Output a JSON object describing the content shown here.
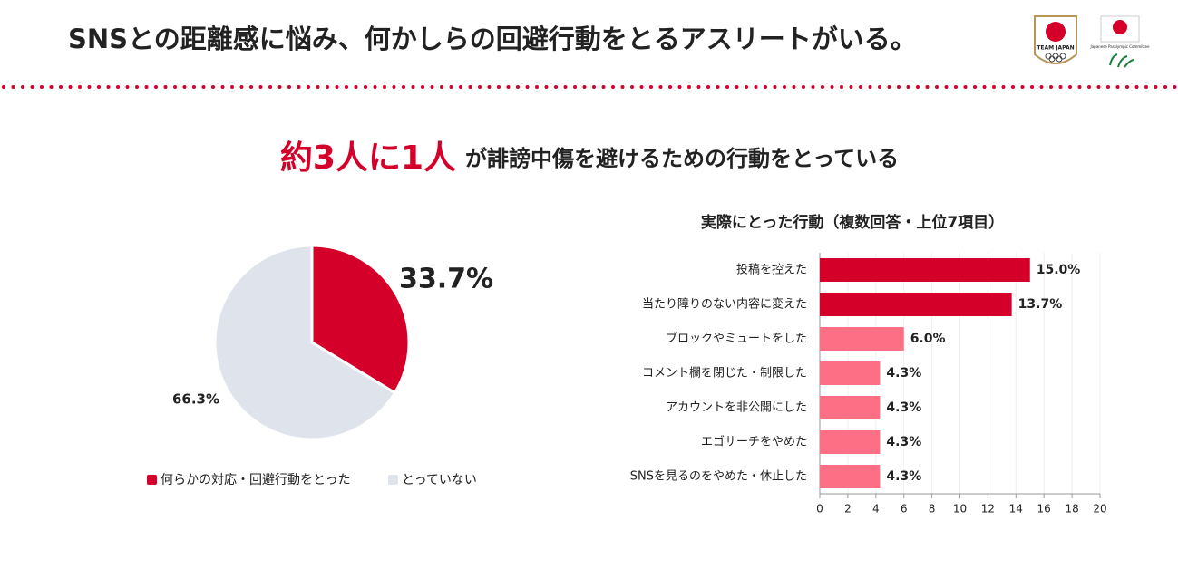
{
  "header": {
    "title": "SNSとの距離感に悩み、何かしらの回避行動をとるアスリートがいる。",
    "logos": [
      "TEAM JAPAN",
      "Japanese Paralympic Committee"
    ]
  },
  "headline": {
    "emphasis": "約3人に1人",
    "text": "が誹謗中傷を避けるための行動をとっている"
  },
  "chart_data": [
    {
      "type": "pie",
      "categories": [
        "何らかの対応・回避行動をとった",
        "とっていない"
      ],
      "values": [
        33.7,
        66.3
      ],
      "value_labels": [
        "33.7%",
        "66.3%"
      ],
      "colors": [
        "#d50029",
        "#dfe4ec"
      ],
      "legend": "bottom"
    },
    {
      "type": "barh",
      "title": "実際にとった行動（複数回答・上位7項目）",
      "categories": [
        "投稿を控えた",
        "当たり障りのない内容に変えた",
        "ブロックやミュートをした",
        "コメント欄を閉じた・制限した",
        "アカウントを非公開にした",
        "エゴサーチをやめた",
        "SNSを見るのをやめた・休止した"
      ],
      "values": [
        15.0,
        13.7,
        6.0,
        4.3,
        4.3,
        4.3,
        4.3
      ],
      "value_labels": [
        "15.0%",
        "13.7%",
        "6.0%",
        "4.3%",
        "4.3%",
        "4.3%",
        "4.3%"
      ],
      "colors": [
        "#d50029",
        "#d50029",
        "#fc6f85",
        "#fc6f85",
        "#fc6f85",
        "#fc6f85",
        "#fc6f85"
      ],
      "xlim": [
        0,
        20
      ],
      "xticks": [
        0,
        2,
        4,
        6,
        8,
        10,
        12,
        14,
        16,
        18,
        20
      ],
      "grid": true
    }
  ]
}
